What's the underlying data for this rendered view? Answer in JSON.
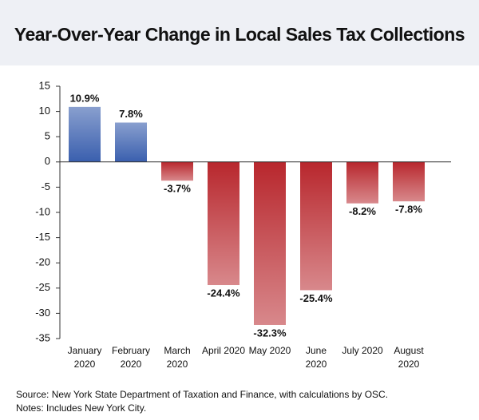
{
  "chart_data": {
    "type": "bar",
    "title": "Year-Over-Year Change in Local Sales Tax Collections",
    "categories": [
      "January 2020",
      "February 2020",
      "March 2020",
      "April 2020",
      "May 2020",
      "June 2020",
      "July 2020",
      "August 2020"
    ],
    "values": [
      10.9,
      7.8,
      -3.7,
      -24.4,
      -32.3,
      -25.4,
      -8.2,
      -7.8
    ],
    "value_labels": [
      "10.9%",
      "7.8%",
      "-3.7%",
      "-24.4%",
      "-32.3%",
      "-25.4%",
      "-8.2%",
      "-7.8%"
    ],
    "positive_color": "#3a5fae",
    "negative_color": "#b8272d",
    "ylim": [
      -35,
      15
    ],
    "yticks": [
      15,
      10,
      5,
      0,
      -5,
      -10,
      -15,
      -20,
      -25,
      -30,
      -35
    ],
    "source": "Source: New York State Department of Taxation and Finance, with calculations by OSC.",
    "notes": "Notes: Includes New York City."
  }
}
